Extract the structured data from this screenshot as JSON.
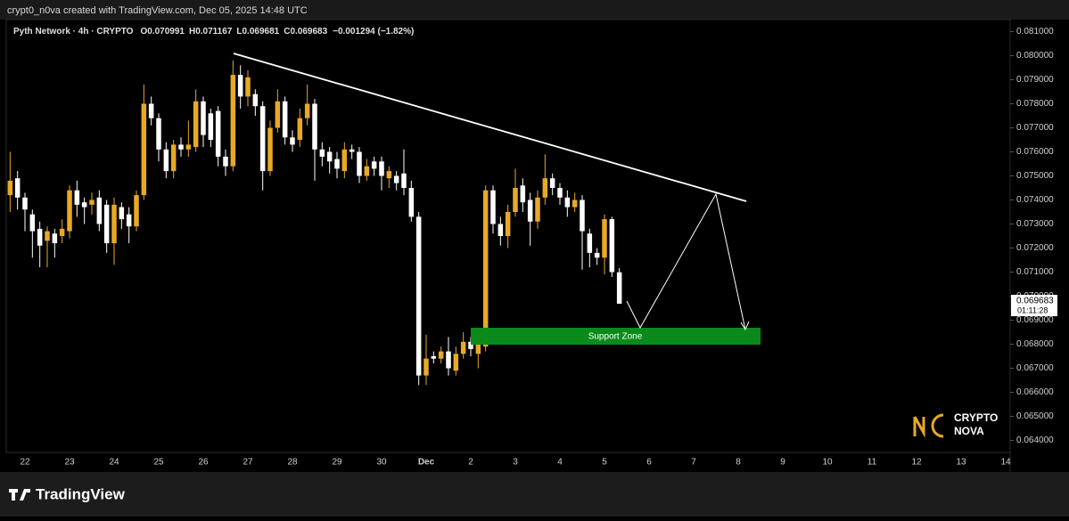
{
  "header": {
    "credit": "crypt0_n0va created with TradingView.com, Dec 05, 2025 14:48 UTC"
  },
  "legend": {
    "symbol": "Pyth Network · 4h · CRYPTO",
    "field_labels": [
      "O",
      "H",
      "L",
      "C"
    ],
    "change": "−0.001294 (−1.82%)"
  },
  "annotations": {
    "support_zone": "Support Zone"
  },
  "price_box": {
    "countdown": "01:11:28"
  },
  "logo": {
    "line1": "CRYPTO",
    "line2": "NOVA"
  },
  "footer": {
    "brand": "TradingView"
  },
  "chart_data": {
    "type": "candlestick",
    "up_color": "#e8a927",
    "down_color": "#ffffff",
    "open": [
      0.0742,
      0.0749,
      0.0741,
      0.0734,
      0.0728,
      0.0723,
      0.0726,
      0.0725,
      0.0727,
      0.0744,
      0.0739,
      0.0738,
      0.0741,
      0.0738,
      0.0722,
      0.0737,
      0.0734,
      0.0729,
      0.0742,
      0.078,
      0.0774,
      0.0761,
      0.0752,
      0.0763,
      0.0761,
      0.0762,
      0.0781,
      0.0776,
      0.0777,
      0.0758,
      0.0754,
      0.0792,
      0.0783,
      0.0784,
      0.0779,
      0.0752,
      0.077,
      0.0781,
      0.0766,
      0.0765,
      0.0774,
      0.078,
      0.0761,
      0.076,
      0.0757,
      0.0752,
      0.0761,
      0.076,
      0.075,
      0.0756,
      0.0756,
      0.0749,
      0.075,
      0.0751,
      0.0745,
      0.0733,
      0.0667,
      0.0675,
      0.0674,
      0.0677,
      0.0669,
      0.0676,
      0.0681,
      0.0676,
      0.0679,
      0.0744,
      0.073,
      0.0725,
      0.0735,
      0.0746,
      0.074,
      0.0731,
      0.0741,
      0.0749,
      0.0745,
      0.0741,
      0.0737,
      0.074,
      0.0726,
      0.0718,
      0.0716,
      0.0732,
      0.070991
    ],
    "high": [
      0.076,
      0.0752,
      0.0743,
      0.0736,
      0.0731,
      0.0729,
      0.0728,
      0.0732,
      0.0746,
      0.0748,
      0.0741,
      0.0743,
      0.0744,
      0.074,
      0.0741,
      0.0739,
      0.0737,
      0.0744,
      0.0788,
      0.0783,
      0.0776,
      0.0764,
      0.0765,
      0.0766,
      0.0773,
      0.0786,
      0.0783,
      0.0778,
      0.0779,
      0.0761,
      0.0798,
      0.0796,
      0.0794,
      0.0786,
      0.0781,
      0.0773,
      0.0786,
      0.0783,
      0.0769,
      0.0778,
      0.0788,
      0.0782,
      0.0764,
      0.0762,
      0.076,
      0.0764,
      0.0763,
      0.0762,
      0.0757,
      0.0758,
      0.0758,
      0.0754,
      0.0752,
      0.0761,
      0.0748,
      0.0735,
      0.0684,
      0.0677,
      0.0679,
      0.0683,
      0.0679,
      0.0685,
      0.0683,
      0.0684,
      0.0746,
      0.0746,
      0.0733,
      0.0738,
      0.0753,
      0.0749,
      0.0743,
      0.0744,
      0.0759,
      0.0751,
      0.0747,
      0.0744,
      0.0743,
      0.0742,
      0.0728,
      0.072,
      0.0734,
      0.0733,
      0.071167
    ],
    "low": [
      0.0735,
      0.0736,
      0.0727,
      0.0716,
      0.0712,
      0.0712,
      0.0716,
      0.0722,
      0.0724,
      0.0733,
      0.073,
      0.0734,
      0.0727,
      0.0718,
      0.0713,
      0.0728,
      0.0722,
      0.0727,
      0.074,
      0.0771,
      0.0756,
      0.0749,
      0.0749,
      0.0758,
      0.0758,
      0.076,
      0.0762,
      0.0762,
      0.0754,
      0.075,
      0.0752,
      0.0778,
      0.0779,
      0.0775,
      0.0744,
      0.075,
      0.0768,
      0.0763,
      0.076,
      0.0762,
      0.0771,
      0.0748,
      0.0754,
      0.0751,
      0.0749,
      0.0749,
      0.0757,
      0.0747,
      0.0748,
      0.075,
      0.0744,
      0.0745,
      0.0744,
      0.0742,
      0.0731,
      0.0663,
      0.0663,
      0.0672,
      0.0672,
      0.0667,
      0.0667,
      0.0674,
      0.0675,
      0.067,
      0.0677,
      0.0726,
      0.0721,
      0.072,
      0.0733,
      0.0735,
      0.0721,
      0.0728,
      0.0738,
      0.0742,
      0.0738,
      0.0733,
      0.0735,
      0.0711,
      0.0712,
      0.0713,
      0.0709,
      0.0708,
      0.069681
    ],
    "close": [
      0.0748,
      0.0741,
      0.0736,
      0.0727,
      0.0721,
      0.0727,
      0.0722,
      0.0728,
      0.0744,
      0.0738,
      0.0737,
      0.074,
      0.073,
      0.0722,
      0.0738,
      0.0732,
      0.0729,
      0.0742,
      0.078,
      0.0774,
      0.0761,
      0.0752,
      0.0763,
      0.0761,
      0.0763,
      0.0781,
      0.0767,
      0.0765,
      0.0758,
      0.0754,
      0.0792,
      0.0783,
      0.0791,
      0.0779,
      0.0752,
      0.077,
      0.0781,
      0.0766,
      0.0763,
      0.0774,
      0.078,
      0.0761,
      0.0758,
      0.0756,
      0.0753,
      0.0761,
      0.076,
      0.075,
      0.0754,
      0.0753,
      0.075,
      0.0752,
      0.0747,
      0.0745,
      0.0733,
      0.0667,
      0.0674,
      0.0674,
      0.0677,
      0.067,
      0.0676,
      0.0681,
      0.0678,
      0.0682,
      0.0744,
      0.073,
      0.0725,
      0.0735,
      0.0745,
      0.0739,
      0.0731,
      0.0741,
      0.0749,
      0.0745,
      0.0741,
      0.0737,
      0.074,
      0.0727,
      0.0718,
      0.0716,
      0.0732,
      0.071,
      0.069683
    ],
    "xticks": [
      "22",
      "23",
      "24",
      "25",
      "26",
      "27",
      "28",
      "29",
      "30",
      "Dec",
      "2",
      "3",
      "4",
      "5",
      "6",
      "7",
      "8",
      "9",
      "10",
      "11",
      "12",
      "13",
      "14"
    ],
    "ylim": [
      0.0635,
      0.0815
    ],
    "yticks": [
      {
        "value": 0.081,
        "label": "0.081000"
      },
      {
        "value": 0.08,
        "label": "0.080000"
      },
      {
        "value": 0.079,
        "label": "0.079000"
      },
      {
        "value": 0.078,
        "label": "0.078000"
      },
      {
        "value": 0.077,
        "label": "0.077000"
      },
      {
        "value": 0.076,
        "label": "0.076000"
      },
      {
        "value": 0.075,
        "label": "0.075000"
      },
      {
        "value": 0.074,
        "label": "0.074000"
      },
      {
        "value": 0.073,
        "label": "0.073000"
      },
      {
        "value": 0.072,
        "label": "0.072000"
      },
      {
        "value": 0.071,
        "label": "0.071000"
      },
      {
        "value": 0.07,
        "label": "0.070000"
      },
      {
        "value": 0.069,
        "label": "0.069000"
      },
      {
        "value": 0.068,
        "label": "0.068000"
      },
      {
        "value": 0.067,
        "label": "0.067000"
      },
      {
        "value": 0.066,
        "label": "0.066000"
      },
      {
        "value": 0.065,
        "label": "0.065000"
      },
      {
        "value": 0.064,
        "label": "0.064000"
      }
    ]
  }
}
